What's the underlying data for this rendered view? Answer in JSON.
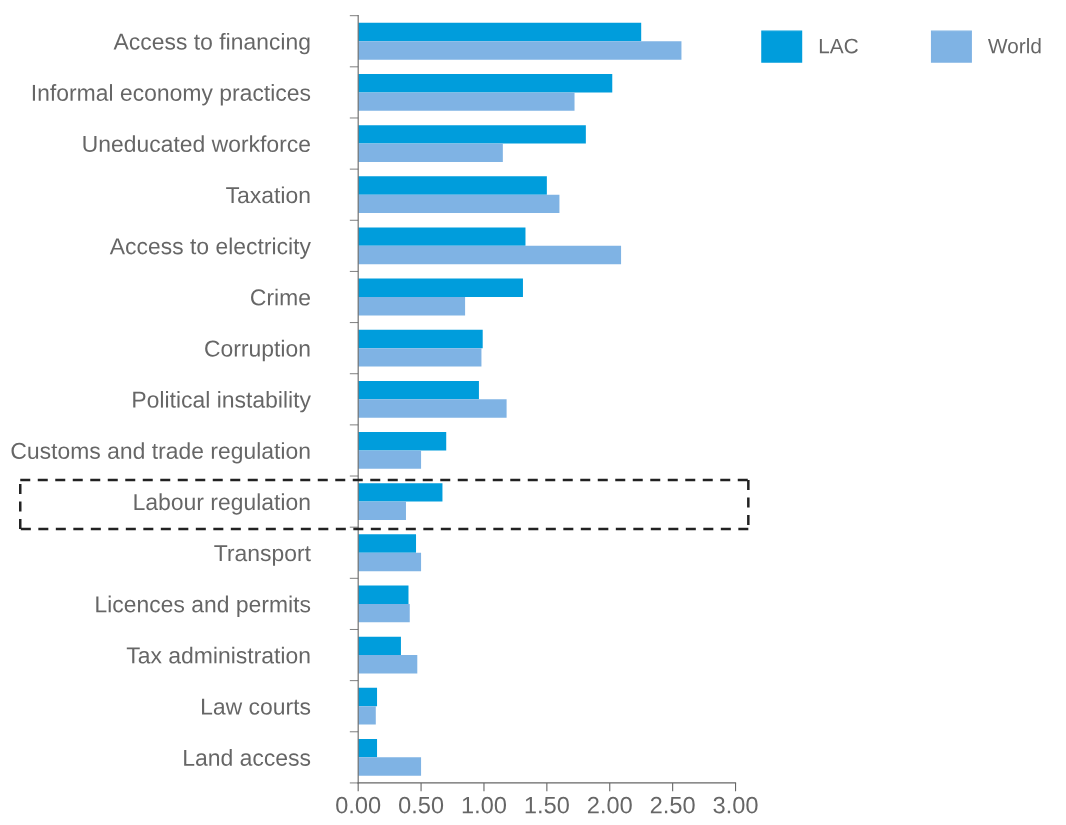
{
  "chart_data": {
    "type": "bar",
    "orientation": "horizontal",
    "categories": [
      "Access to financing",
      "Informal economy practices",
      "Uneducated workforce",
      "Taxation",
      "Access to electricity",
      "Crime",
      "Corruption",
      "Political instability",
      "Customs and trade regulation",
      "Labour regulation",
      "Transport",
      "Licences and permits",
      "Tax administration",
      "Law courts",
      "Land access"
    ],
    "series": [
      {
        "name": "LAC",
        "color": "#009ddc",
        "values": [
          2.25,
          2.02,
          1.81,
          1.5,
          1.33,
          1.31,
          0.99,
          0.96,
          0.7,
          0.67,
          0.46,
          0.4,
          0.34,
          0.15,
          0.15
        ]
      },
      {
        "name": "World",
        "color": "#7fb3e4",
        "values": [
          2.57,
          1.72,
          1.15,
          1.6,
          2.09,
          0.85,
          0.98,
          1.18,
          0.5,
          0.38,
          0.5,
          0.41,
          0.47,
          0.14,
          0.5
        ]
      }
    ],
    "xlim": [
      0,
      3
    ],
    "xticks": [
      {
        "value": 0,
        "label": "0.00"
      },
      {
        "value": 0.5,
        "label": "0.50"
      },
      {
        "value": 1,
        "label": "1.00"
      },
      {
        "value": 1.5,
        "label": "1.50"
      },
      {
        "value": 2,
        "label": "2.00"
      },
      {
        "value": 2.5,
        "label": "2.50"
      },
      {
        "value": 3,
        "label": "3.00"
      }
    ],
    "grid": false,
    "legend": "top right"
  }
}
